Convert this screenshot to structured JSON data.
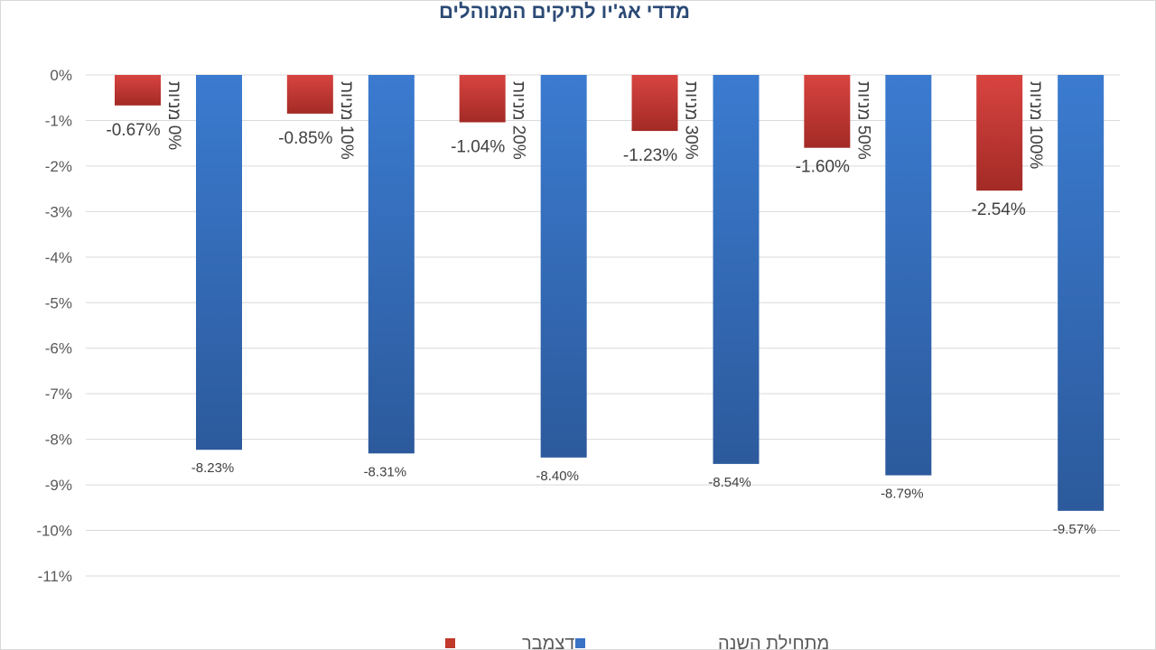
{
  "chart_data": {
    "type": "bar",
    "title": "מדדי אג'יו לתיקים המנוהלים",
    "categories": [
      "0% מניות",
      "10% מניות",
      "20% מניות",
      "30% מניות",
      "50% מניות",
      "100% מניות"
    ],
    "series": [
      {
        "name": "דצמבר",
        "color": "#c0392b",
        "values": [
          -0.67,
          -0.85,
          -1.04,
          -1.23,
          -1.6,
          -2.54
        ],
        "labels": [
          "-0.67%",
          "-0.85%",
          "-1.04%",
          "-1.23%",
          "-1.60%",
          "-2.54%"
        ]
      },
      {
        "name": "מתחילת השנה",
        "color": "#3a74c4",
        "values": [
          -8.23,
          -8.31,
          -8.4,
          -8.54,
          -8.79,
          -9.57
        ],
        "labels": [
          "-8.23%",
          "-8.31%",
          "-8.40%",
          "-8.54%",
          "-8.79%",
          "-9.57%"
        ]
      }
    ],
    "ylim": [
      -11,
      0
    ],
    "yticks": [
      "0%",
      "-1%",
      "-2%",
      "-3%",
      "-4%",
      "-5%",
      "-6%",
      "-7%",
      "-8%",
      "-9%",
      "-10%",
      "-11%"
    ],
    "grid": true,
    "legend": "bottom",
    "xlabel": "",
    "ylabel": ""
  }
}
